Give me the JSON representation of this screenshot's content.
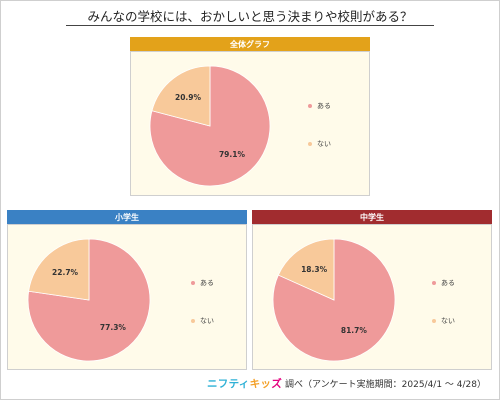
{
  "page": {
    "title": "みんなの学校には、おかしいと思う決まりや校則がある？",
    "logo": {
      "part1": "ニフティ",
      "part2": "キッ",
      "part3": "ズ"
    },
    "source_text": "調べ（アンケート実施期間：2025/4/1 ～ 4/28）"
  },
  "colors": {
    "aru": "#ef9a9a",
    "nai": "#f8c99a",
    "overall_header": "#e3a21a",
    "elementary_header": "#3a81c4",
    "junior_header": "#a12c2f",
    "panel_background": "#fffbea"
  },
  "chart_data": [
    {
      "type": "pie",
      "title": "全体グラフ",
      "categories": [
        "ある",
        "ない"
      ],
      "values": [
        79.1,
        20.9
      ],
      "labels": [
        "79.1%",
        "20.9%"
      ],
      "legend": {
        "position": "right",
        "entries": [
          "ある",
          "ない"
        ]
      }
    },
    {
      "type": "pie",
      "title": "小学生",
      "categories": [
        "ある",
        "ない"
      ],
      "values": [
        77.3,
        22.7
      ],
      "labels": [
        "77.3%",
        "22.7%"
      ],
      "legend": {
        "position": "right",
        "entries": [
          "ある",
          "ない"
        ]
      }
    },
    {
      "type": "pie",
      "title": "中学生",
      "categories": [
        "ある",
        "ない"
      ],
      "values": [
        81.7,
        18.3
      ],
      "labels": [
        "81.7%",
        "18.3%"
      ],
      "legend": {
        "position": "right",
        "entries": [
          "ある",
          "ない"
        ]
      }
    }
  ]
}
